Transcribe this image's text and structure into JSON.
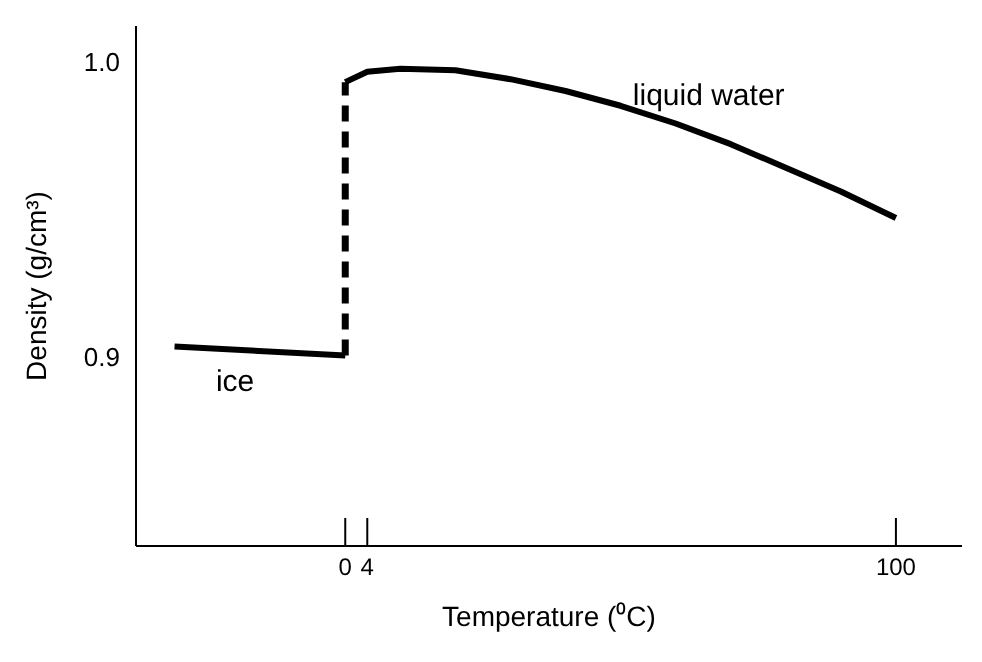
{
  "chart_data": {
    "type": "line",
    "xlabel": "Temperature (⁰C)",
    "ylabel": "Density (g/cm³)",
    "xlim": [
      -38,
      112
    ],
    "ylim": [
      0.836,
      1.012
    ],
    "xticks": [
      0,
      4,
      100
    ],
    "yticks": [
      0.9,
      {
        "value": 1,
        "label": "1.0"
      }
    ],
    "marker": "none",
    "series": [
      {
        "color": "#000000",
        "x": [
          -31,
          0
        ],
        "values": [
          0.9035,
          0.9005
        ]
      },
      {
        "color": "#000000",
        "line_style": "dashed",
        "x": [
          0,
          0
        ],
        "values": [
          0.9005,
          0.993
        ]
      },
      {
        "color": "#000000",
        "x": [
          0,
          4,
          10,
          20,
          30,
          40,
          50,
          60,
          70,
          80,
          90,
          100
        ],
        "values": [
          0.993,
          0.9965,
          0.9975,
          0.997,
          0.994,
          0.99,
          0.985,
          0.979,
          0.972,
          0.964,
          0.956,
          0.947
        ]
      }
    ],
    "annotations": [
      "liquid water",
      "ice"
    ]
  }
}
